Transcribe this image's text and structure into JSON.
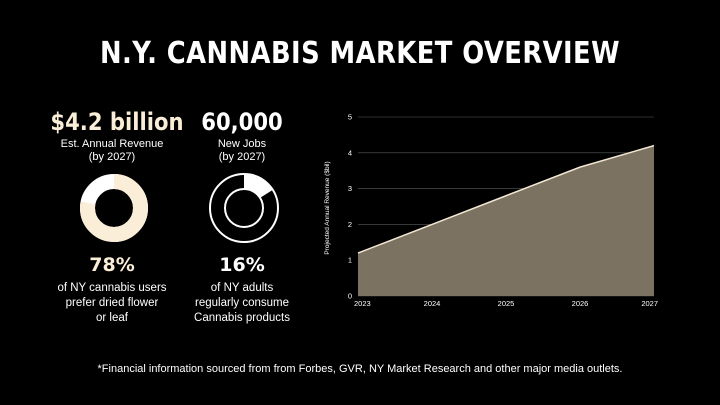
{
  "title": "N.Y. CANNABIS MARKET OVERVIEW",
  "stats": {
    "revenue": {
      "value": "$4.2 billion",
      "label_line1": "Est. Annual Revenue",
      "label_line2": "(by 2027)",
      "color": "#fbeed8"
    },
    "jobs": {
      "value": "60,000",
      "label_line1": "New Jobs",
      "label_line2": "(by 2027)",
      "color": "#ffffff"
    }
  },
  "donuts": [
    {
      "percent": 78,
      "percent_label": "78%",
      "desc_line1": "of NY cannabis users",
      "desc_line2": "prefer dried flower",
      "desc_line3": "or leaf",
      "fill_color": "#fbeed8",
      "label_color": "#fbeed8"
    },
    {
      "percent": 16,
      "percent_label": "16%",
      "desc_line1": "of NY adults",
      "desc_line2": "regularly consume",
      "desc_line3": "Cannabis products",
      "fill_color": "#ffffff",
      "label_color": "#ffffff"
    }
  ],
  "chart_data": {
    "type": "area",
    "x": [
      2023,
      2024,
      2025,
      2026,
      2027
    ],
    "y": [
      1.2,
      2.0,
      2.8,
      3.6,
      4.2
    ],
    "ylabel": "Projected Annual Revenue ($bil)",
    "xlabel": "",
    "ylim": [
      0,
      5
    ],
    "yticks": [
      0,
      1,
      2,
      3,
      4,
      5
    ],
    "grid": true,
    "fill_color": "#7b7262",
    "line_color": "#f3e7d3"
  },
  "footnote": "*Financial information sourced from from Forbes, GVR, NY Market Research and other major media outlets."
}
